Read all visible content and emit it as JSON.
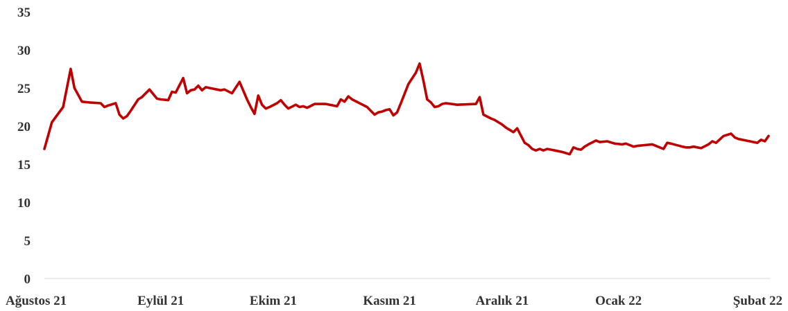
{
  "chart_data": {
    "type": "line",
    "title": "",
    "xlabel": "",
    "ylabel": "",
    "ylim": [
      0,
      35
    ],
    "yticks": [
      0,
      5,
      10,
      15,
      20,
      25,
      30,
      35
    ],
    "xlim": [
      0,
      193
    ],
    "xticks": [
      {
        "label": "Ağustos 21",
        "x": 0
      },
      {
        "label": "Eylül 21",
        "x": 31
      },
      {
        "label": "Ekim 21",
        "x": 61
      },
      {
        "label": "Kasım 21",
        "x": 92
      },
      {
        "label": "Aralık 21",
        "x": 122
      },
      {
        "label": "Ocak 22",
        "x": 153
      },
      {
        "label": "Şubat 22",
        "x": 184
      }
    ],
    "grid": false,
    "legend": "none",
    "color": "#c00000",
    "series": [
      {
        "x": [
          0,
          2,
          5,
          7,
          8,
          10,
          12,
          15,
          16,
          17,
          19,
          20,
          21,
          22,
          23,
          25,
          26,
          28,
          29,
          30,
          31,
          33,
          34,
          35,
          37,
          38,
          39,
          40,
          41,
          42,
          43,
          45,
          46,
          47,
          48,
          50,
          52,
          54,
          55,
          56,
          57,
          58,
          59,
          60,
          62,
          63,
          64,
          65,
          67,
          68,
          69,
          70,
          72,
          75,
          78,
          79,
          80,
          81,
          82,
          84,
          86,
          88,
          89,
          90,
          91,
          92,
          93,
          94,
          95,
          97,
          99,
          100,
          101,
          102,
          103,
          104,
          105,
          106,
          107,
          110,
          115,
          116,
          117,
          119,
          120,
          121,
          122,
          123,
          125,
          126,
          128,
          129,
          130,
          131,
          132,
          133,
          134,
          135,
          136,
          137,
          138,
          140,
          141,
          142,
          143,
          144,
          145,
          147,
          148,
          150,
          152,
          154,
          155,
          156,
          157,
          158,
          160,
          162,
          165,
          166,
          167,
          170,
          171,
          172,
          173,
          175,
          177,
          178,
          179,
          181,
          183,
          184,
          185,
          187,
          188,
          189,
          190,
          191,
          192,
          193
        ],
        "y": [
          17.0,
          20.5,
          22.5,
          27.5,
          25.0,
          23.2,
          23.1,
          23.0,
          22.5,
          22.7,
          23.0,
          21.5,
          21.0,
          21.3,
          22.0,
          23.5,
          23.8,
          24.8,
          24.2,
          23.6,
          23.5,
          23.4,
          24.5,
          24.4,
          26.3,
          24.3,
          24.7,
          24.8,
          25.3,
          24.7,
          25.1,
          24.9,
          24.8,
          24.7,
          24.8,
          24.3,
          25.8,
          23.5,
          22.5,
          21.6,
          24.0,
          22.8,
          22.3,
          22.5,
          23.0,
          23.4,
          22.8,
          22.3,
          22.8,
          22.5,
          22.6,
          22.4,
          22.9,
          22.9,
          22.6,
          23.5,
          23.2,
          23.9,
          23.5,
          23.0,
          22.5,
          21.5,
          21.8,
          21.9,
          22.1,
          22.2,
          21.4,
          21.8,
          23.0,
          25.5,
          27.0,
          28.2,
          26.0,
          23.5,
          23.1,
          22.5,
          22.6,
          22.9,
          23.0,
          22.8,
          22.9,
          23.8,
          21.5,
          21.0,
          20.8,
          20.5,
          20.2,
          19.8,
          19.2,
          19.7,
          17.8,
          17.5,
          17.0,
          16.8,
          17.0,
          16.8,
          17.0,
          16.9,
          16.8,
          16.7,
          16.6,
          16.3,
          17.2,
          17.0,
          16.9,
          17.3,
          17.6,
          18.1,
          17.9,
          18.0,
          17.7,
          17.6,
          17.7,
          17.5,
          17.3,
          17.4,
          17.5,
          17.6,
          17.0,
          17.8,
          17.7,
          17.3,
          17.2,
          17.2,
          17.3,
          17.1,
          17.6,
          18.0,
          17.8,
          18.7,
          19.0,
          18.5,
          18.3,
          18.1,
          18.0,
          17.9,
          17.8,
          18.2,
          18.0,
          18.7
        ]
      }
    ]
  }
}
